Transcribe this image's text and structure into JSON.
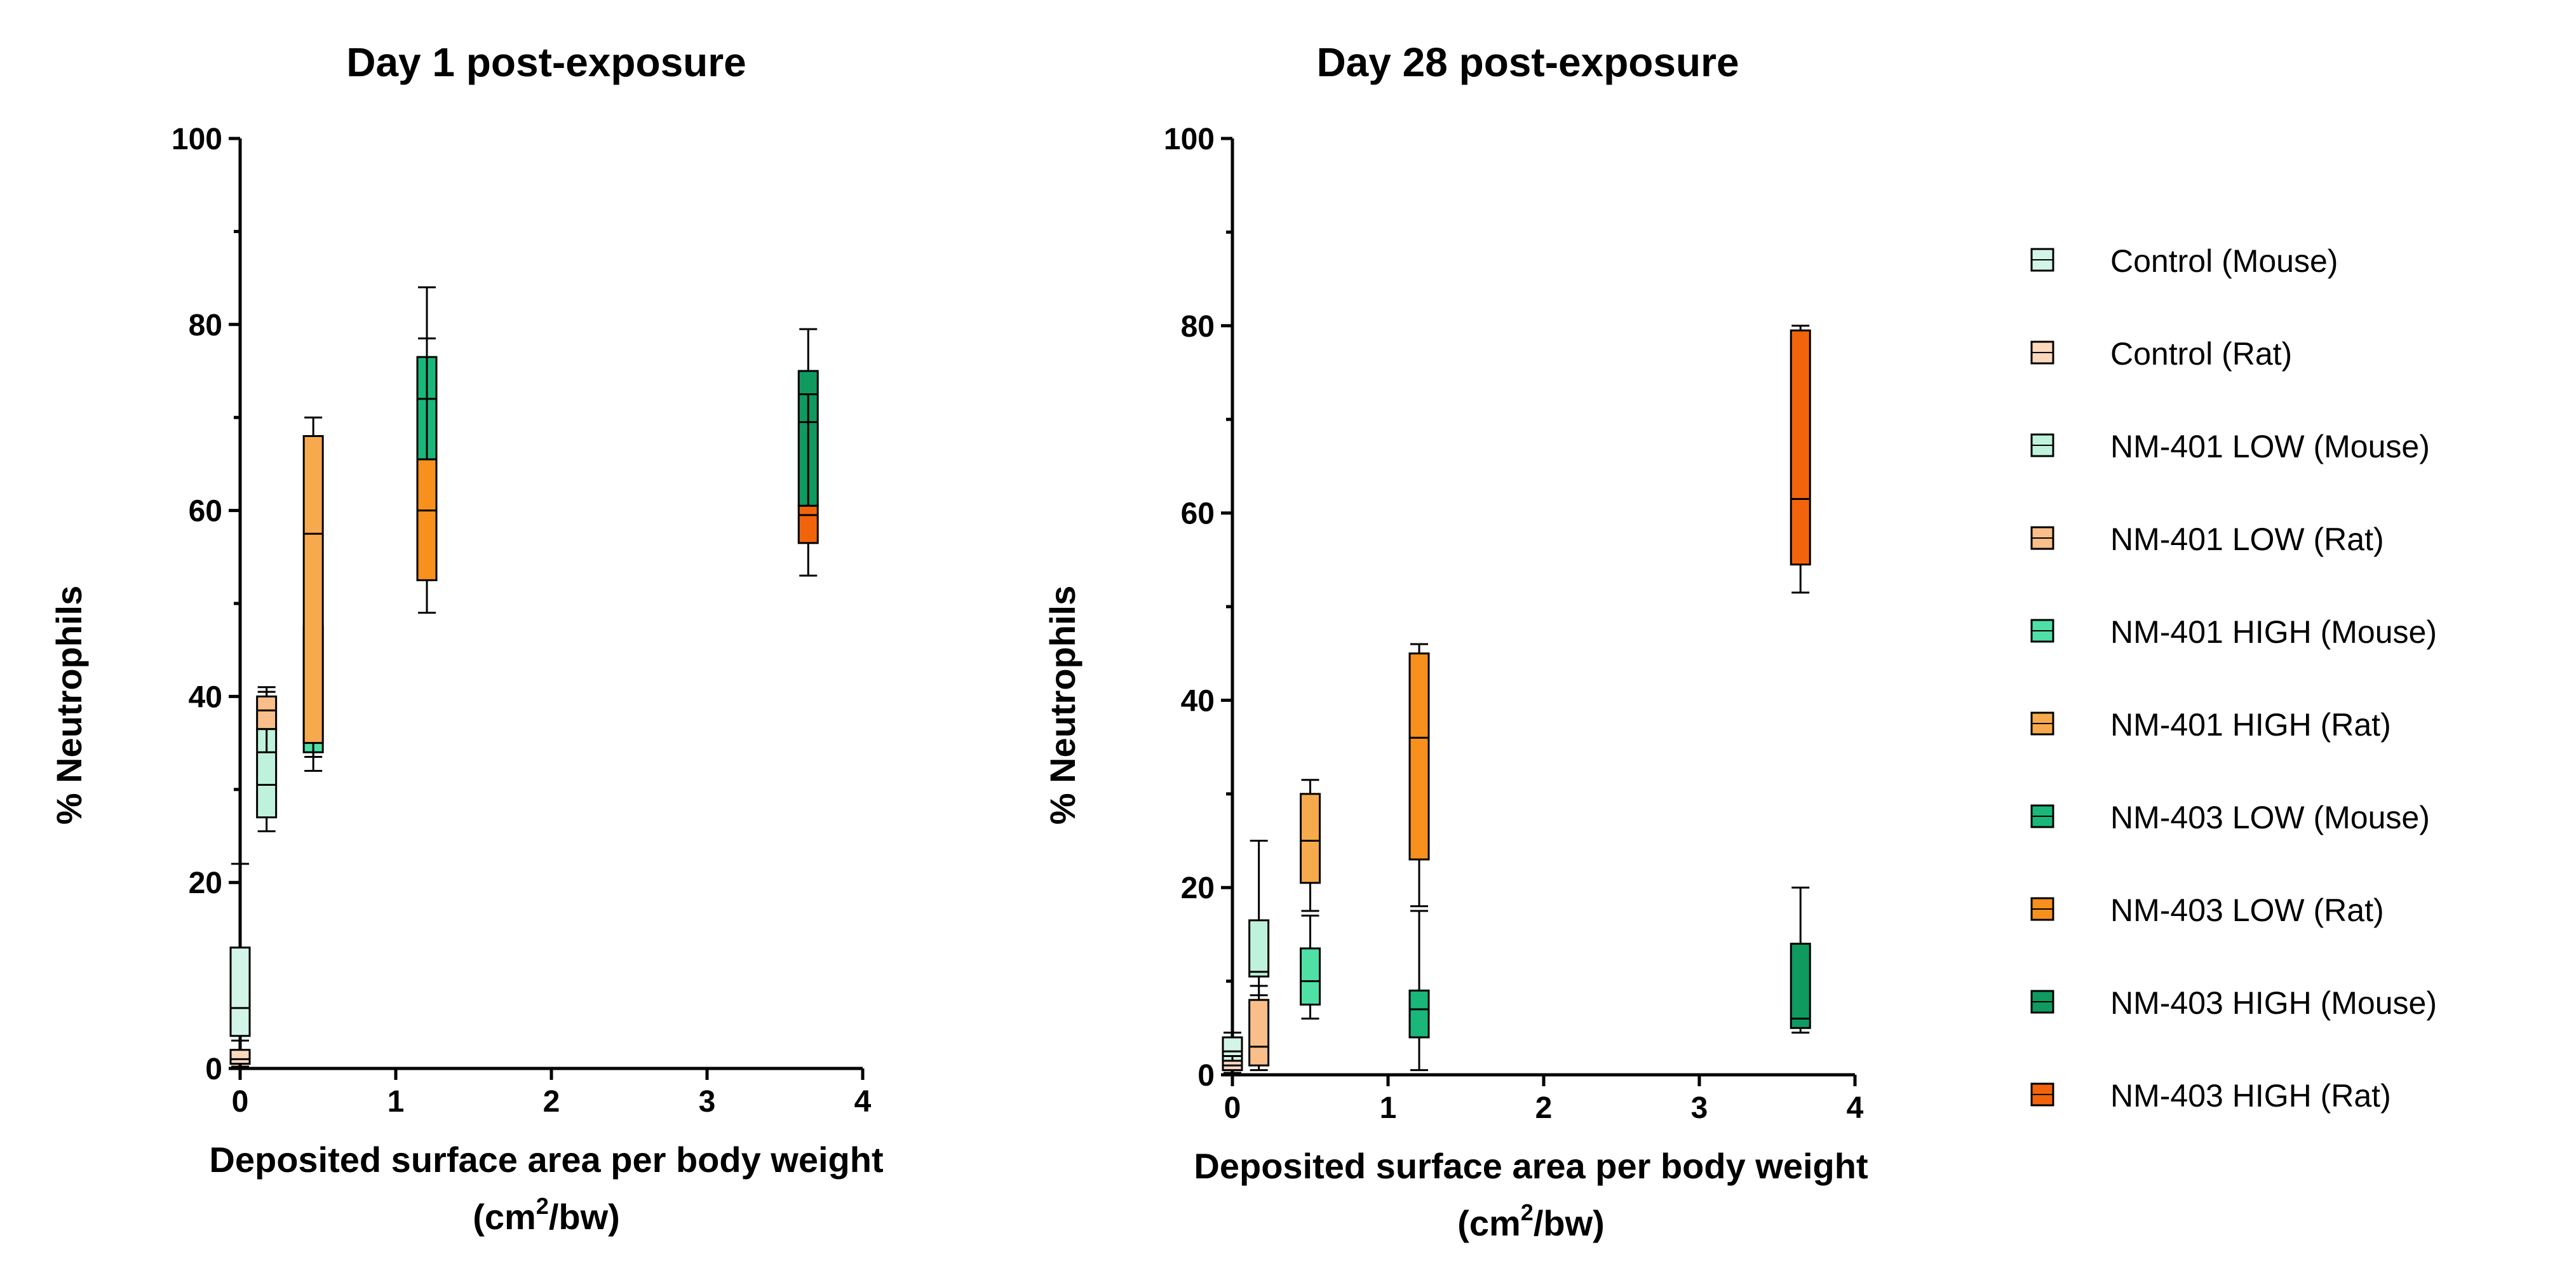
{
  "legend": {
    "entries": [
      {
        "label": "Control (Mouse)",
        "color": "#d3f5e8"
      },
      {
        "label": "Control (Rat)",
        "color": "#fcd9bd"
      },
      {
        "label": "NM-401 LOW (Mouse)",
        "color": "#bff2dc"
      },
      {
        "label": "NM-401 LOW (Rat)",
        "color": "#f9be8a"
      },
      {
        "label": "NM-401 HIGH (Mouse)",
        "color": "#4fe0a6"
      },
      {
        "label": "NM-401 HIGH (Rat)",
        "color": "#f7a94e"
      },
      {
        "label": "NM-403 LOW (Mouse)",
        "color": "#1ab77a"
      },
      {
        "label": "NM-403 LOW (Rat)",
        "color": "#f7901c"
      },
      {
        "label": "NM-403 HIGH (Mouse)",
        "color": "#0f9a60"
      },
      {
        "label": "NM-403 HIGH (Rat)",
        "color": "#f2640b"
      }
    ]
  },
  "chart_data": [
    {
      "type": "box",
      "title": "Day 1 post-exposure",
      "xlabel_line1": "Deposited surface area per body weight",
      "xlabel_line2_prefix": "(cm",
      "xlabel_line2_sup": "2",
      "xlabel_line2_suffix": "/bw)",
      "ylabel": "% Neutrophils",
      "xlim": [
        0,
        4
      ],
      "ylim": [
        0,
        100
      ],
      "x_ticks": [
        "0",
        "1",
        "2",
        "3",
        "4"
      ],
      "y_ticks": [
        "0",
        "20",
        "40",
        "60",
        "80",
        "100"
      ],
      "boxes": [
        {
          "group": "Control (Mouse)",
          "x": 0.0,
          "min": 0.5,
          "q1": 3.5,
          "median": 6.5,
          "q3": 13.0,
          "max": 22.0
        },
        {
          "group": "Control (Rat)",
          "x": 0.0,
          "min": 0.2,
          "q1": 0.5,
          "median": 1.0,
          "q3": 2.0,
          "max": 3.0
        },
        {
          "group": "NM-401 LOW (Mouse)",
          "x": 0.17,
          "min": 25.5,
          "q1": 27.0,
          "median": 30.5,
          "q3": 36.5,
          "max": 40.5
        },
        {
          "group": "NM-401 LOW (Rat)",
          "x": 0.17,
          "min": 34.0,
          "q1": 36.5,
          "median": 38.5,
          "q3": 40.0,
          "max": 41.0
        },
        {
          "group": "NM-401 HIGH (Mouse)",
          "x": 0.47,
          "min": 32.0,
          "q1": 34.0,
          "median": 36.5,
          "q3": 47.5,
          "max": 57.0
        },
        {
          "group": "NM-401 HIGH (Rat)",
          "x": 0.47,
          "min": 33.5,
          "q1": 35.0,
          "median": 57.5,
          "q3": 68.0,
          "max": 70.0
        },
        {
          "group": "NM-403 LOW (Mouse)",
          "x": 1.2,
          "min": 57.0,
          "q1": 57.5,
          "median": 72.0,
          "q3": 76.5,
          "max": 78.5
        },
        {
          "group": "NM-403 LOW (Rat)",
          "x": 1.2,
          "min": 49.0,
          "q1": 52.5,
          "median": 60.0,
          "q3": 65.5,
          "max": 84.0
        },
        {
          "group": "NM-403 HIGH (Mouse)",
          "x": 3.65,
          "min": 58.0,
          "q1": 60.5,
          "median": 69.5,
          "q3": 75.0,
          "max": 79.5
        },
        {
          "group": "NM-403 HIGH (Rat)",
          "x": 3.65,
          "min": 53.0,
          "q1": 56.5,
          "median": 59.5,
          "q3": 60.5,
          "max": 72.5
        }
      ]
    },
    {
      "type": "box",
      "title": "Day 28 post-exposure",
      "xlabel_line1": "Deposited surface area per body weight",
      "xlabel_line2_prefix": "(cm",
      "xlabel_line2_sup": "2",
      "xlabel_line2_suffix": "/bw)",
      "ylabel": "% Neutrophils",
      "xlim": [
        0,
        4
      ],
      "ylim": [
        0,
        100
      ],
      "x_ticks": [
        "0",
        "1",
        "2",
        "3",
        "4"
      ],
      "y_ticks": [
        "0",
        "20",
        "40",
        "60",
        "80",
        "100"
      ],
      "boxes": [
        {
          "group": "Control (Mouse)",
          "x": 0.0,
          "min": 0.5,
          "q1": 1.0,
          "median": 2.5,
          "q3": 4.0,
          "max": 4.5
        },
        {
          "group": "Control (Rat)",
          "x": 0.0,
          "min": 0.2,
          "q1": 0.5,
          "median": 1.0,
          "q3": 1.5,
          "max": 2.0
        },
        {
          "group": "NM-401 LOW (Mouse)",
          "x": 0.17,
          "min": 8.5,
          "q1": 10.5,
          "median": 11.0,
          "q3": 16.5,
          "max": 25.0
        },
        {
          "group": "NM-401 LOW (Rat)",
          "x": 0.17,
          "min": 0.5,
          "q1": 1.0,
          "median": 3.0,
          "q3": 8.0,
          "max": 9.5
        },
        {
          "group": "NM-401 HIGH (Mouse)",
          "x": 0.5,
          "min": 6.0,
          "q1": 7.5,
          "median": 10.0,
          "q3": 13.5,
          "max": 17.0
        },
        {
          "group": "NM-401 HIGH (Rat)",
          "x": 0.5,
          "min": 17.5,
          "q1": 20.5,
          "median": 25.0,
          "q3": 30.0,
          "max": 31.5
        },
        {
          "group": "NM-403 LOW (Mouse)",
          "x": 1.2,
          "min": 0.5,
          "q1": 4.0,
          "median": 7.0,
          "q3": 9.0,
          "max": 17.5
        },
        {
          "group": "NM-403 LOW (Rat)",
          "x": 1.2,
          "min": 18.0,
          "q1": 23.0,
          "median": 36.0,
          "q3": 45.0,
          "max": 46.0
        },
        {
          "group": "NM-403 HIGH (Mouse)",
          "x": 3.65,
          "min": 4.5,
          "q1": 5.0,
          "median": 6.0,
          "q3": 14.0,
          "max": 20.0
        },
        {
          "group": "NM-403 HIGH (Rat)",
          "x": 3.65,
          "min": 51.5,
          "q1": 54.5,
          "median": 61.5,
          "q3": 79.5,
          "max": 80.0
        }
      ]
    }
  ]
}
